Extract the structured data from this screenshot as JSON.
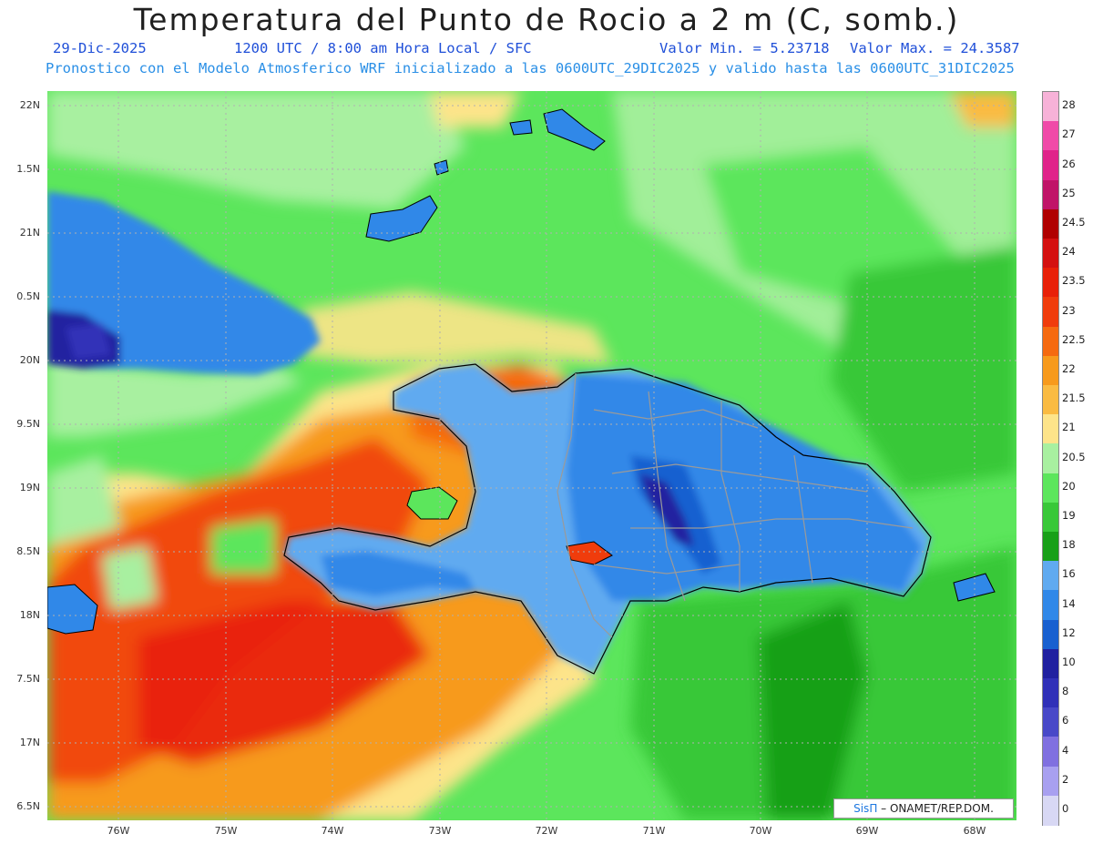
{
  "header": {
    "title": "Temperatura del Punto de Rocio a 2 m (C, somb.)",
    "date": "29-Dic-2025",
    "time": "1200 UTC / 8:00 am Hora Local / SFC",
    "vmin": "Valor Min. = 5.23718",
    "vmax": "Valor Max. = 24.3587",
    "model_line": "Pronostico con el Modelo Atmosferico WRF inicializado a las 0600UTC_29DIC2025 y valido hasta las  0600UTC_31DIC2025"
  },
  "axes": {
    "lat_labels": [
      "22N",
      "1.5N",
      "21N",
      "0.5N",
      "20N",
      "9.5N",
      "19N",
      "8.5N",
      "18N",
      "7.5N",
      "17N",
      "6.5N"
    ],
    "lon_labels": [
      "76W",
      "75W",
      "74W",
      "73W",
      "72W",
      "71W",
      "70W",
      "69W",
      "68W"
    ]
  },
  "colorbar": {
    "labels": [
      "28",
      "27",
      "26",
      "25",
      "24.5",
      "24",
      "23.5",
      "23",
      "22.5",
      "22",
      "21.5",
      "21",
      "20.5",
      "20",
      "19",
      "18",
      "16",
      "14",
      "12",
      "10",
      "8",
      "6",
      "4",
      "2",
      "0"
    ],
    "colors": [
      "#f7b2d8",
      "#f04aa8",
      "#e0238a",
      "#c01468",
      "#b00000",
      "#d41010",
      "#e82008",
      "#f03c0c",
      "#f56a10",
      "#f79a1c",
      "#fabb42",
      "#fde48a",
      "#a8f0a0",
      "#5ce65c",
      "#38c838",
      "#18a018",
      "#60aaf0",
      "#3088e8",
      "#1860d0",
      "#2020a0",
      "#3030b8",
      "#4848c8",
      "#8070e0",
      "#a8a0f0",
      "#d8d8f4"
    ]
  },
  "credit": {
    "brand": "SisΠ",
    "text": "– ONAMET/REP.DOM."
  }
}
